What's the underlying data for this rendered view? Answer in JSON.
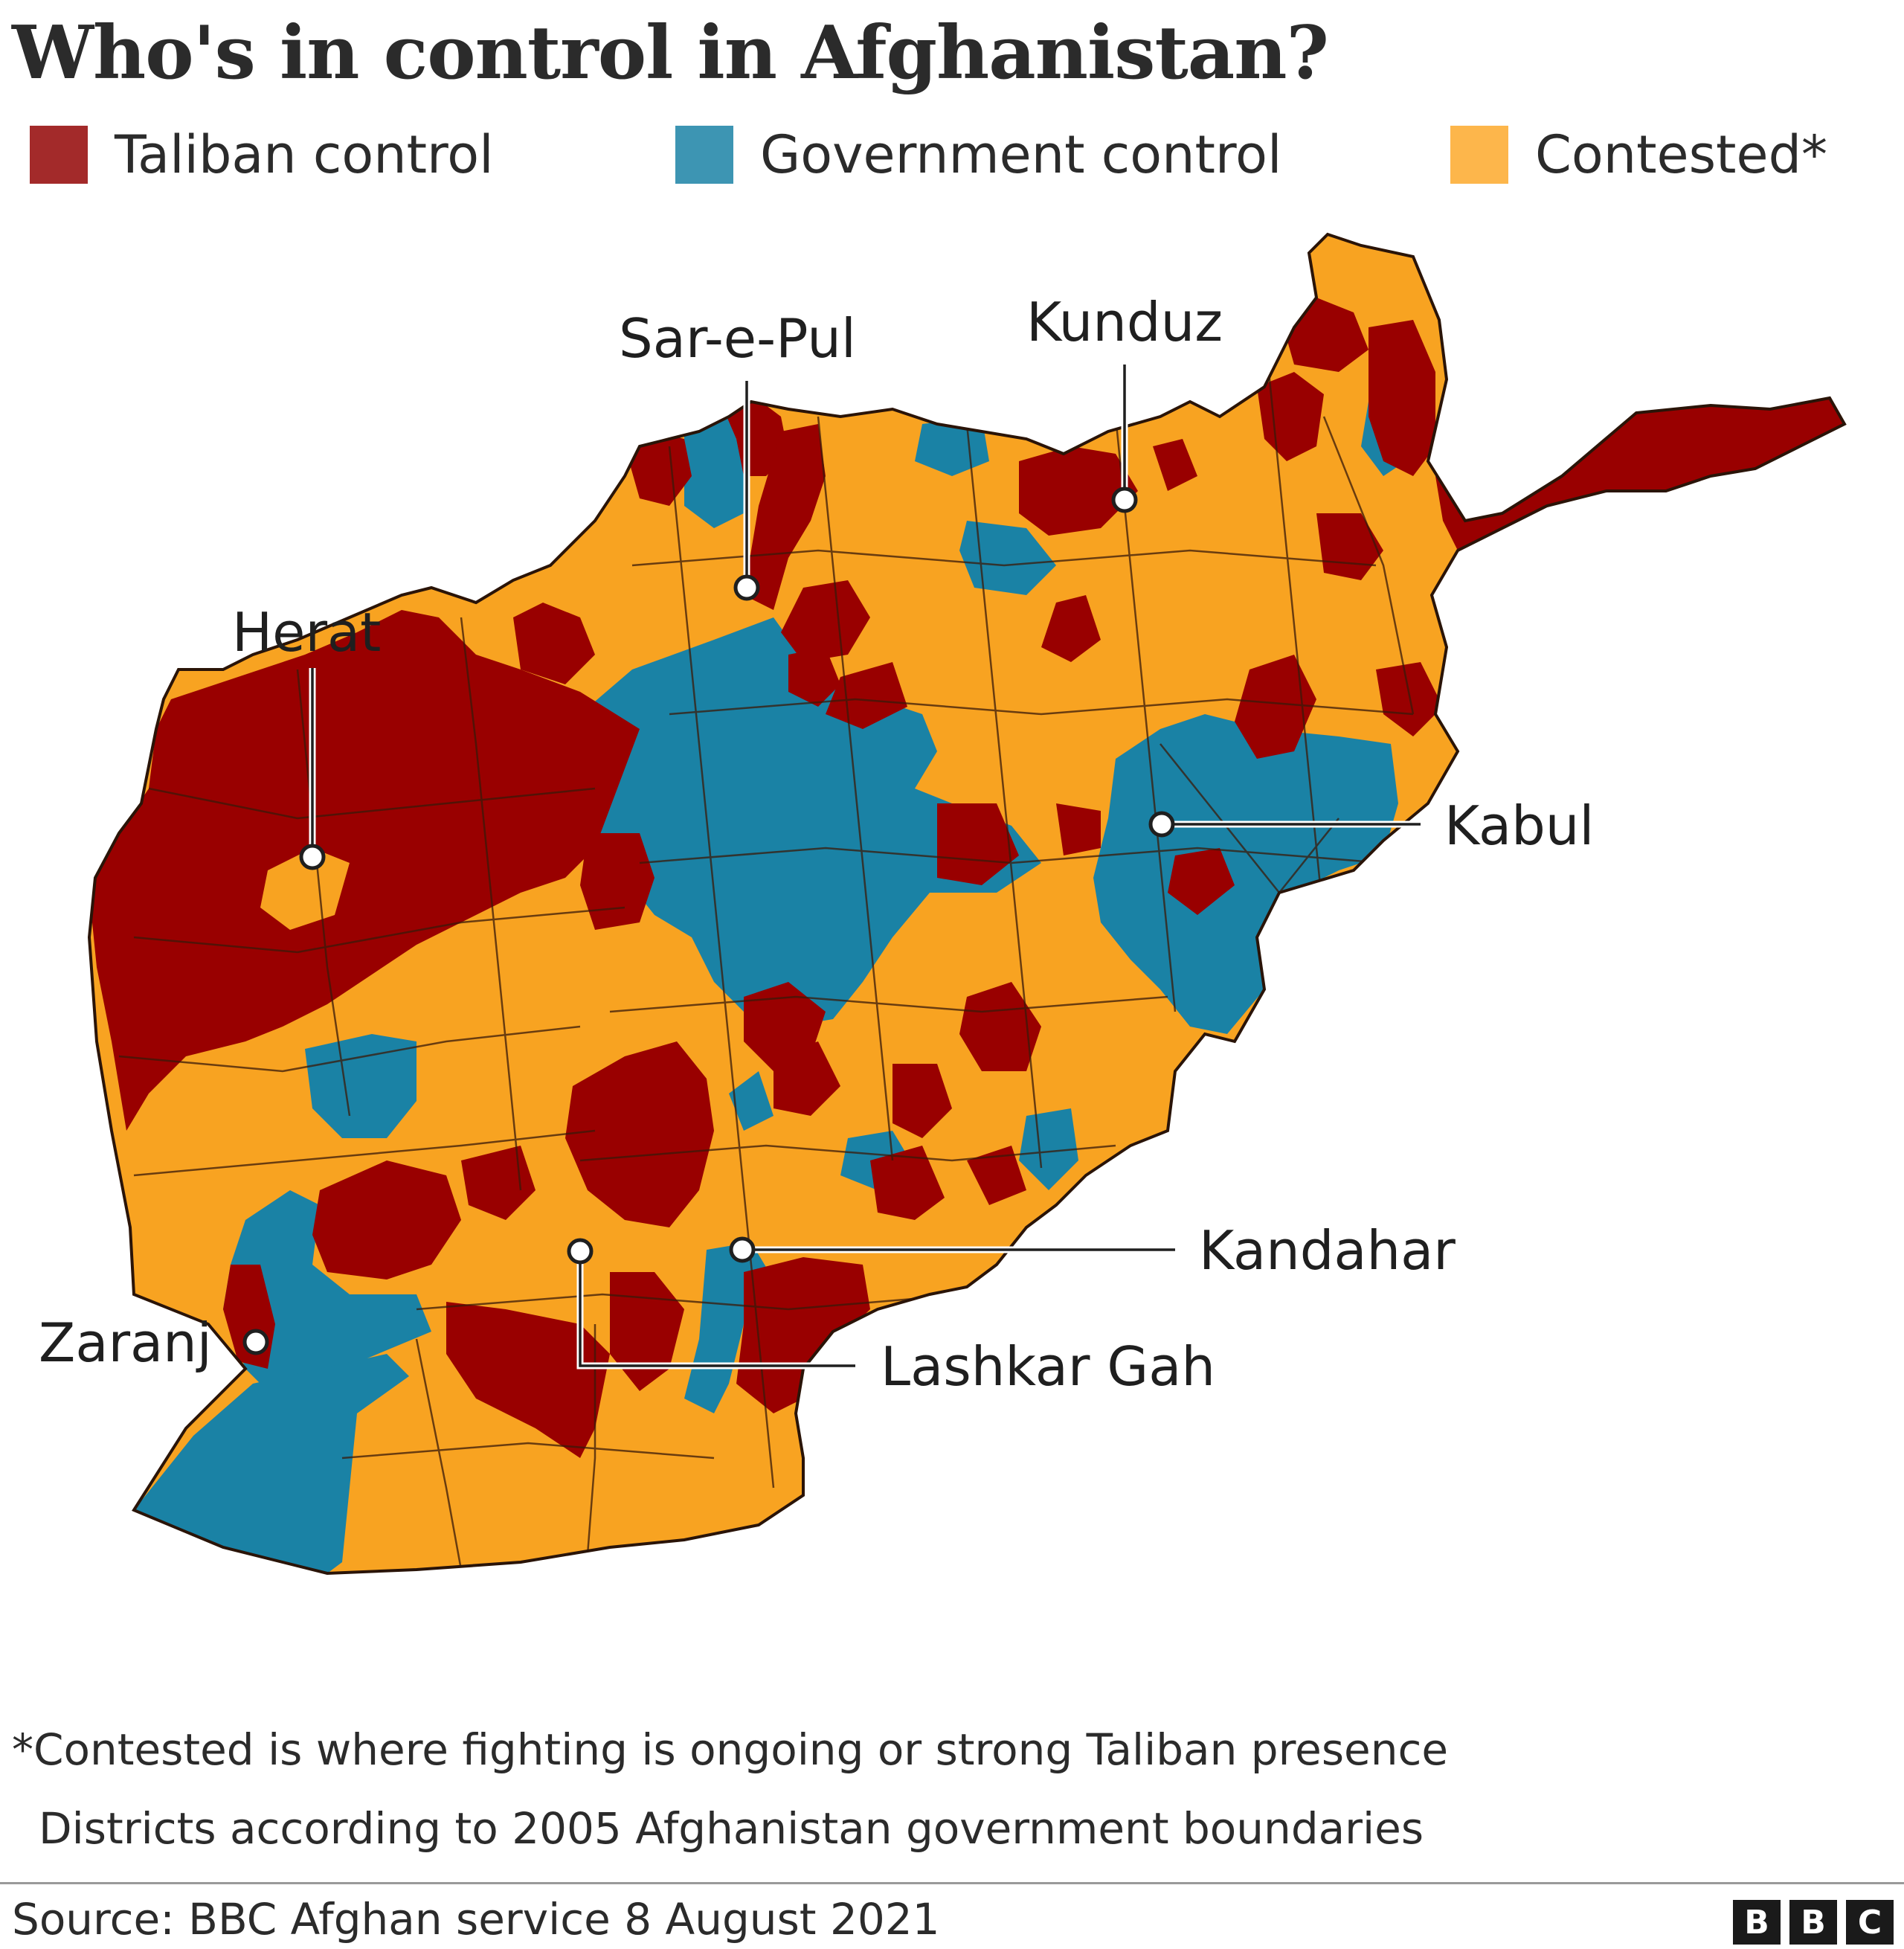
{
  "title": "Who's in control in Afghanistan?",
  "legend": [
    {
      "key": "taliban",
      "label": "Taliban control",
      "color": "#990000"
    },
    {
      "key": "government",
      "label": "Government control",
      "color": "#1a82a5"
    },
    {
      "key": "contested",
      "label": "Contested*",
      "color": "#f8a321"
    }
  ],
  "cities": [
    {
      "key": "herat",
      "name": "Herat"
    },
    {
      "key": "sarepul",
      "name": "Sar-e-Pul"
    },
    {
      "key": "kunduz",
      "name": "Kunduz"
    },
    {
      "key": "kabul",
      "name": "Kabul"
    },
    {
      "key": "kandahar",
      "name": "Kandahar"
    },
    {
      "key": "lashkargah",
      "name": "Lashkar Gah"
    },
    {
      "key": "zaranj",
      "name": "Zaranj"
    }
  ],
  "notes": {
    "contested": "*Contested is where fighting is ongoing or strong Taliban presence",
    "boundaries": "Districts according to 2005 Afghanistan government boundaries"
  },
  "source": "Source: BBC Afghan service 8 August 2021",
  "logo": [
    "B",
    "B",
    "C"
  ]
}
